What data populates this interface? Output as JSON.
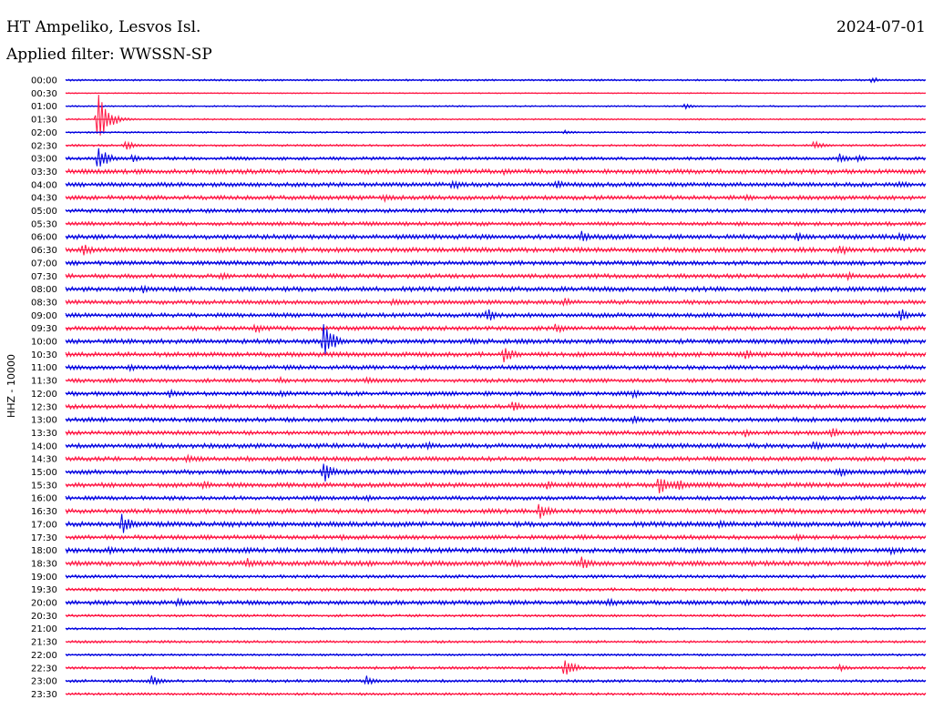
{
  "header": {
    "station": "HT Ampeliko, Lesvos Isl.",
    "filter": "Applied filter: WWSSN-SP",
    "date": "2024-07-01"
  },
  "chart_data": {
    "type": "line",
    "title": "HT Ampeliko, Lesvos Isl.",
    "ylabel": "HHZ - 10000",
    "colors": [
      "#0000e0",
      "#ff1744"
    ],
    "rows": [
      "00:00",
      "00:30",
      "01:00",
      "01:30",
      "02:00",
      "02:30",
      "03:00",
      "03:30",
      "04:00",
      "04:30",
      "05:00",
      "05:30",
      "06:00",
      "06:30",
      "07:00",
      "07:30",
      "08:00",
      "08:30",
      "09:00",
      "09:30",
      "10:00",
      "10:30",
      "11:00",
      "11:30",
      "12:00",
      "12:30",
      "13:00",
      "13:30",
      "14:00",
      "14:30",
      "15:00",
      "15:30",
      "16:00",
      "16:30",
      "17:00",
      "17:30",
      "18:00",
      "18:30",
      "19:00",
      "19:30",
      "20:00",
      "20:30",
      "21:00",
      "21:30",
      "22:00",
      "22:30",
      "23:00",
      "23:30"
    ],
    "noise": [
      1,
      0.6,
      0.8,
      0.9,
      0.9,
      1.2,
      1.8,
      2.6,
      2.4,
      2.4,
      2.2,
      2.2,
      2.6,
      2.6,
      2.4,
      2.4,
      2.6,
      2.4,
      2.4,
      2.4,
      2.6,
      2.6,
      2.4,
      2.2,
      2.4,
      2.4,
      2.4,
      2.4,
      2.6,
      2.4,
      2.6,
      2.6,
      2.2,
      2.6,
      2.8,
      2.4,
      2.8,
      2.8,
      1.8,
      1.8,
      2.4,
      1.4,
      1.2,
      1.4,
      1.2,
      1.6,
      1.6,
      1.4
    ],
    "events": [
      {
        "row": 0,
        "x": 0.937,
        "amp": 4
      },
      {
        "row": 2,
        "x": 0.72,
        "amp": 3
      },
      {
        "row": 3,
        "x": 0.038,
        "amp": 30
      },
      {
        "row": 4,
        "x": 0.58,
        "amp": 3
      },
      {
        "row": 5,
        "x": 0.07,
        "amp": 5
      },
      {
        "row": 5,
        "x": 0.87,
        "amp": 5
      },
      {
        "row": 6,
        "x": 0.038,
        "amp": 14
      },
      {
        "row": 6,
        "x": 0.078,
        "amp": 5
      },
      {
        "row": 6,
        "x": 0.9,
        "amp": 6
      },
      {
        "row": 6,
        "x": 0.92,
        "amp": 5
      },
      {
        "row": 7,
        "x": 0.03,
        "amp": 4
      },
      {
        "row": 7,
        "x": 0.51,
        "amp": 5
      },
      {
        "row": 8,
        "x": 0.45,
        "amp": 7
      },
      {
        "row": 8,
        "x": 0.57,
        "amp": 6
      },
      {
        "row": 8,
        "x": 0.97,
        "amp": 5
      },
      {
        "row": 9,
        "x": 0.37,
        "amp": 6
      },
      {
        "row": 9,
        "x": 0.79,
        "amp": 5
      },
      {
        "row": 12,
        "x": 0.6,
        "amp": 7
      },
      {
        "row": 12,
        "x": 0.85,
        "amp": 7
      },
      {
        "row": 12,
        "x": 0.97,
        "amp": 7
      },
      {
        "row": 13,
        "x": 0.02,
        "amp": 8
      },
      {
        "row": 13,
        "x": 0.9,
        "amp": 7
      },
      {
        "row": 15,
        "x": 0.18,
        "amp": 5
      },
      {
        "row": 15,
        "x": 0.91,
        "amp": 5
      },
      {
        "row": 16,
        "x": 0.09,
        "amp": 5
      },
      {
        "row": 17,
        "x": 0.38,
        "amp": 5
      },
      {
        "row": 17,
        "x": 0.58,
        "amp": 6
      },
      {
        "row": 18,
        "x": 0.49,
        "amp": 8
      },
      {
        "row": 18,
        "x": 0.97,
        "amp": 9
      },
      {
        "row": 19,
        "x": 0.22,
        "amp": 6
      },
      {
        "row": 19,
        "x": 0.57,
        "amp": 6
      },
      {
        "row": 20,
        "x": 0.3,
        "amp": 22
      },
      {
        "row": 20,
        "x": 0.47,
        "amp": 5
      },
      {
        "row": 21,
        "x": 0.51,
        "amp": 10
      },
      {
        "row": 21,
        "x": 0.79,
        "amp": 7
      },
      {
        "row": 22,
        "x": 0.075,
        "amp": 5
      },
      {
        "row": 23,
        "x": 0.35,
        "amp": 5
      },
      {
        "row": 23,
        "x": 0.25,
        "amp": 4
      },
      {
        "row": 24,
        "x": 0.12,
        "amp": 5
      },
      {
        "row": 24,
        "x": 0.25,
        "amp": 4
      },
      {
        "row": 24,
        "x": 0.66,
        "amp": 5
      },
      {
        "row": 25,
        "x": 0.52,
        "amp": 7
      },
      {
        "row": 26,
        "x": 0.66,
        "amp": 5
      },
      {
        "row": 27,
        "x": 0.79,
        "amp": 6
      },
      {
        "row": 27,
        "x": 0.89,
        "amp": 7
      },
      {
        "row": 28,
        "x": 0.42,
        "amp": 5
      },
      {
        "row": 28,
        "x": 0.87,
        "amp": 6
      },
      {
        "row": 29,
        "x": 0.14,
        "amp": 5
      },
      {
        "row": 29,
        "x": 0.21,
        "amp": 4
      },
      {
        "row": 30,
        "x": 0.3,
        "amp": 13
      },
      {
        "row": 30,
        "x": 0.9,
        "amp": 6
      },
      {
        "row": 31,
        "x": 0.16,
        "amp": 6
      },
      {
        "row": 31,
        "x": 0.56,
        "amp": 6
      },
      {
        "row": 31,
        "x": 0.69,
        "amp": 12
      },
      {
        "row": 31,
        "x": 0.71,
        "amp": 8
      },
      {
        "row": 32,
        "x": 0.29,
        "amp": 4
      },
      {
        "row": 32,
        "x": 0.35,
        "amp": 4
      },
      {
        "row": 33,
        "x": 0.55,
        "amp": 10
      },
      {
        "row": 34,
        "x": 0.065,
        "amp": 12
      },
      {
        "row": 34,
        "x": 0.76,
        "amp": 5
      },
      {
        "row": 35,
        "x": 0.32,
        "amp": 5
      },
      {
        "row": 35,
        "x": 0.6,
        "amp": 4
      },
      {
        "row": 35,
        "x": 0.85,
        "amp": 4
      },
      {
        "row": 36,
        "x": 0.05,
        "amp": 5
      },
      {
        "row": 36,
        "x": 0.21,
        "amp": 5
      },
      {
        "row": 36,
        "x": 0.96,
        "amp": 5
      },
      {
        "row": 37,
        "x": 0.21,
        "amp": 7
      },
      {
        "row": 37,
        "x": 0.52,
        "amp": 5
      },
      {
        "row": 37,
        "x": 0.6,
        "amp": 8
      },
      {
        "row": 40,
        "x": 0.13,
        "amp": 6
      },
      {
        "row": 40,
        "x": 0.63,
        "amp": 7
      },
      {
        "row": 40,
        "x": 0.79,
        "amp": 4
      },
      {
        "row": 45,
        "x": 0.58,
        "amp": 11
      },
      {
        "row": 45,
        "x": 0.9,
        "amp": 4
      },
      {
        "row": 46,
        "x": 0.1,
        "amp": 6
      },
      {
        "row": 46,
        "x": 0.35,
        "amp": 7
      }
    ]
  }
}
